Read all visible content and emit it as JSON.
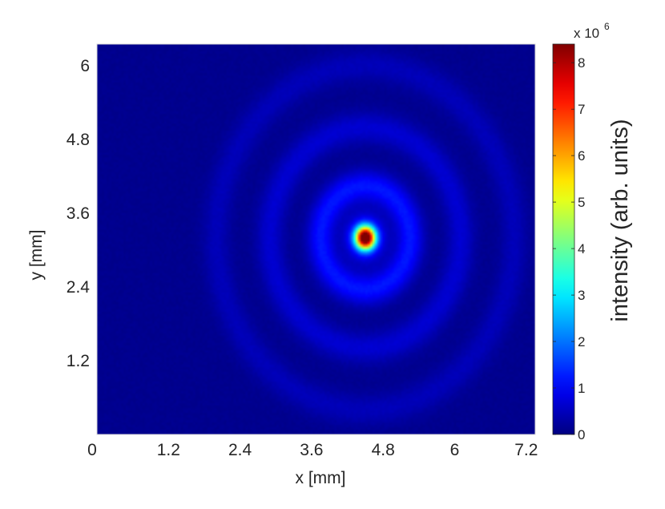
{
  "chart_data": {
    "type": "heatmap",
    "title": "",
    "xlabel": "x [mm]",
    "ylabel": "y [mm]",
    "xlim": [
      0,
      7.35
    ],
    "ylim": [
      0,
      6.35
    ],
    "x_ticks": [
      0,
      1.2,
      2.4,
      3.6,
      4.8,
      6,
      7.2
    ],
    "x_tick_labels": [
      "0",
      "1.2",
      "2.4",
      "3.6",
      "4.8",
      "6",
      "7.2"
    ],
    "y_ticks": [
      1.2,
      2.4,
      3.6,
      4.8,
      6
    ],
    "y_tick_labels": [
      "1.2",
      "2.4",
      "3.6",
      "4.8",
      "6"
    ],
    "colorbar": {
      "label": "intensity (arb. units)",
      "min": 0,
      "max": 8.4,
      "ticks": [
        0,
        1,
        2,
        3,
        4,
        5,
        6,
        7,
        8
      ],
      "tick_labels": [
        "0",
        "1",
        "2",
        "3",
        "4",
        "5",
        "6",
        "7",
        "8"
      ],
      "multiplier_text": "x 10",
      "multiplier_exponent": "6",
      "colormap": "jet"
    },
    "features": {
      "peak_center_mm": [
        4.5,
        3.2
      ],
      "peak_value": 8.4,
      "rings_mm": [
        {
          "radius": 0.75,
          "value": 1.1
        },
        {
          "radius": 1.6,
          "value": 0.55
        },
        {
          "radius": 2.5,
          "value": 0.35
        }
      ],
      "background_value": 0.12
    },
    "grid": false
  }
}
